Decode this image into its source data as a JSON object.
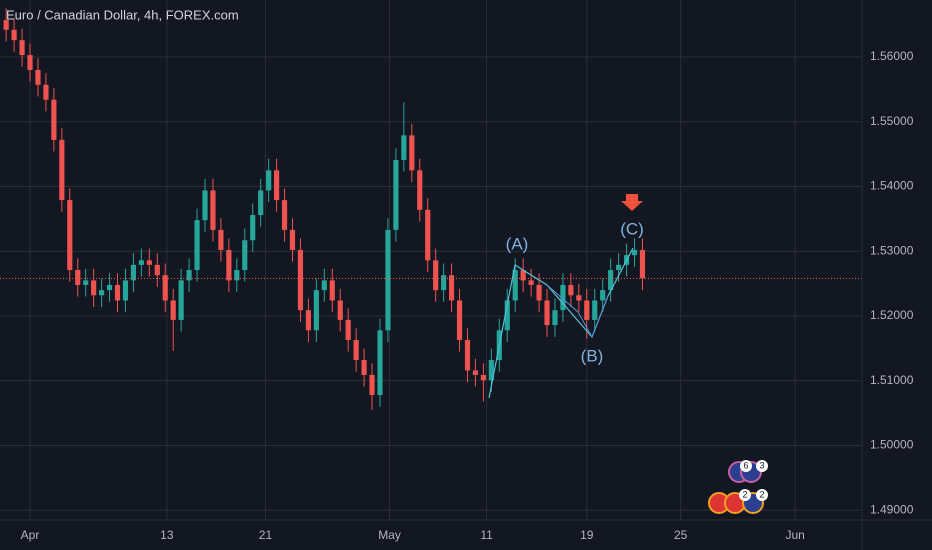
{
  "chart_data": {
    "type": "candlestick",
    "title": "Euro / Canadian Dollar, 4h, FOREX.com",
    "x": [
      -1.5,
      -1,
      -0.5,
      0,
      0.5,
      1,
      1.5,
      2,
      2.5,
      3,
      3.5,
      4,
      4.5,
      5,
      5.5,
      6,
      6.5,
      7,
      7.5,
      8,
      8.5,
      9,
      9.5,
      10,
      10.5,
      11,
      11.5,
      12,
      12.5,
      13,
      13.5,
      14,
      14.5,
      15,
      15.5,
      16,
      16.5,
      17,
      17.5,
      18,
      18.5,
      19,
      19.5,
      20,
      20.5,
      21,
      21.5,
      22,
      22.5,
      23,
      23.5,
      24,
      24.5,
      25,
      25.5,
      26,
      26.5,
      27,
      27.5,
      28,
      28.5,
      29,
      29.5,
      30,
      30.5,
      31,
      31.5,
      32,
      32.5,
      33,
      33.5,
      34,
      34.5,
      35,
      35.5,
      36,
      36.5,
      37,
      37.5,
      38,
      38.5
    ],
    "open": [
      1.5657,
      1.5642,
      1.5626,
      1.5603,
      1.558,
      1.5557,
      1.5534,
      1.5472,
      1.5379,
      1.5271,
      1.5248,
      1.5255,
      1.5232,
      1.524,
      1.5248,
      1.5224,
      1.5255,
      1.5279,
      1.5286,
      1.5279,
      1.5263,
      1.5224,
      1.5194,
      1.5255,
      1.5271,
      1.5348,
      1.5394,
      1.5333,
      1.5302,
      1.5255,
      1.5271,
      1.5317,
      1.5356,
      1.5394,
      1.5425,
      1.5379,
      1.5333,
      1.5302,
      1.5209,
      1.5178,
      1.524,
      1.5255,
      1.5224,
      1.5194,
      1.5163,
      1.5132,
      1.5109,
      1.5078,
      1.5178,
      1.5333,
      1.5441,
      1.5479,
      1.5425,
      1.5364,
      1.5286,
      1.524,
      1.5263,
      1.5224,
      1.5163,
      1.5116,
      1.5109,
      1.5101,
      1.5132,
      1.5178,
      1.5224,
      1.5271,
      1.5255,
      1.5248,
      1.5224,
      1.5186,
      1.5209,
      1.5248,
      1.5232,
      1.5224,
      1.5194,
      1.5224,
      1.524,
      1.5271,
      1.5279,
      1.5294,
      1.5302
    ],
    "high": [
      1.5675,
      1.566,
      1.5644,
      1.5621,
      1.5598,
      1.5575,
      1.5552,
      1.549,
      1.5397,
      1.5289,
      1.5273,
      1.5273,
      1.5258,
      1.5266,
      1.5266,
      1.5273,
      1.5297,
      1.5304,
      1.5304,
      1.5297,
      1.5281,
      1.5242,
      1.5273,
      1.5289,
      1.5366,
      1.5412,
      1.5412,
      1.5351,
      1.532,
      1.5289,
      1.5335,
      1.5374,
      1.5412,
      1.5443,
      1.5443,
      1.5397,
      1.5351,
      1.532,
      1.5227,
      1.5258,
      1.5273,
      1.5273,
      1.5242,
      1.5212,
      1.5181,
      1.515,
      1.5127,
      1.5196,
      1.5351,
      1.5459,
      1.553,
      1.5497,
      1.5443,
      1.5382,
      1.5304,
      1.5281,
      1.5281,
      1.5242,
      1.5181,
      1.5134,
      1.5127,
      1.515,
      1.5196,
      1.5242,
      1.5289,
      1.5289,
      1.5273,
      1.5266,
      1.5242,
      1.5227,
      1.5266,
      1.5266,
      1.525,
      1.5242,
      1.5242,
      1.5258,
      1.5289,
      1.5297,
      1.5312,
      1.532,
      1.532
    ],
    "low": [
      1.5624,
      1.5608,
      1.5585,
      1.5562,
      1.5539,
      1.5516,
      1.5454,
      1.5361,
      1.5253,
      1.523,
      1.523,
      1.5214,
      1.5214,
      1.5222,
      1.5206,
      1.5206,
      1.5237,
      1.5261,
      1.5261,
      1.5245,
      1.5206,
      1.5146,
      1.5176,
      1.5237,
      1.5253,
      1.533,
      1.5315,
      1.5284,
      1.5237,
      1.5237,
      1.5253,
      1.5299,
      1.5338,
      1.5376,
      1.5361,
      1.5315,
      1.5284,
      1.5191,
      1.516,
      1.516,
      1.5222,
      1.5206,
      1.5176,
      1.5145,
      1.5114,
      1.5091,
      1.5055,
      1.506,
      1.516,
      1.5315,
      1.5423,
      1.5407,
      1.5346,
      1.5268,
      1.5222,
      1.5222,
      1.5206,
      1.5145,
      1.5098,
      1.5091,
      1.5068,
      1.5083,
      1.5114,
      1.516,
      1.5206,
      1.5237,
      1.523,
      1.5206,
      1.5168,
      1.5168,
      1.5191,
      1.5214,
      1.5206,
      1.5165,
      1.5176,
      1.5206,
      1.5222,
      1.5253,
      1.5261,
      1.5276,
      1.524
    ],
    "close": [
      1.5642,
      1.5626,
      1.5603,
      1.558,
      1.5557,
      1.5534,
      1.5472,
      1.5379,
      1.5271,
      1.5248,
      1.5255,
      1.5232,
      1.524,
      1.5248,
      1.5224,
      1.5255,
      1.5279,
      1.5286,
      1.5279,
      1.5263,
      1.5224,
      1.5194,
      1.5255,
      1.5271,
      1.5348,
      1.5394,
      1.5333,
      1.5302,
      1.5255,
      1.5271,
      1.5317,
      1.5356,
      1.5394,
      1.5425,
      1.5379,
      1.5333,
      1.5302,
      1.5209,
      1.5178,
      1.524,
      1.5255,
      1.5224,
      1.5194,
      1.5163,
      1.5132,
      1.5109,
      1.5078,
      1.5178,
      1.5333,
      1.5441,
      1.5479,
      1.5425,
      1.5364,
      1.5286,
      1.524,
      1.5263,
      1.5224,
      1.5163,
      1.5116,
      1.5109,
      1.5101,
      1.5132,
      1.5178,
      1.5224,
      1.5271,
      1.5255,
      1.5248,
      1.5224,
      1.5186,
      1.5209,
      1.5248,
      1.5232,
      1.5224,
      1.5194,
      1.5224,
      1.524,
      1.5271,
      1.5279,
      1.5294,
      1.5302,
      1.5258
    ],
    "up_color": "#26a69a",
    "down_color": "#ef5350",
    "xlim": [
      -1.887,
      52.3
    ],
    "xticks": [
      {
        "value": 0,
        "label": "Apr"
      },
      {
        "value": 8.6,
        "label": "13"
      },
      {
        "value": 14.8,
        "label": "21"
      },
      {
        "value": 22.6,
        "label": "May"
      },
      {
        "value": 28.7,
        "label": "11"
      },
      {
        "value": 35.0,
        "label": "19"
      },
      {
        "value": 40.9,
        "label": "25"
      },
      {
        "value": 48.1,
        "label": "Jun"
      }
    ],
    "ylim": [
      1.4885,
      1.5688
    ],
    "yticks": [
      {
        "value": 1.49,
        "label": "1.49000"
      },
      {
        "value": 1.5,
        "label": "1.50000"
      },
      {
        "value": 1.51,
        "label": "1.51000"
      },
      {
        "value": 1.52,
        "label": "1.52000"
      },
      {
        "value": 1.53,
        "label": "1.53000"
      },
      {
        "value": 1.54,
        "label": "1.54000"
      },
      {
        "value": 1.55,
        "label": "1.55000"
      },
      {
        "value": 1.56,
        "label": "1.56000"
      }
    ],
    "grid": true,
    "last_price_line": true,
    "annotations": [
      "(A)",
      "(B)",
      "(C)"
    ]
  },
  "events": [
    "6",
    "3",
    "2",
    "2"
  ]
}
